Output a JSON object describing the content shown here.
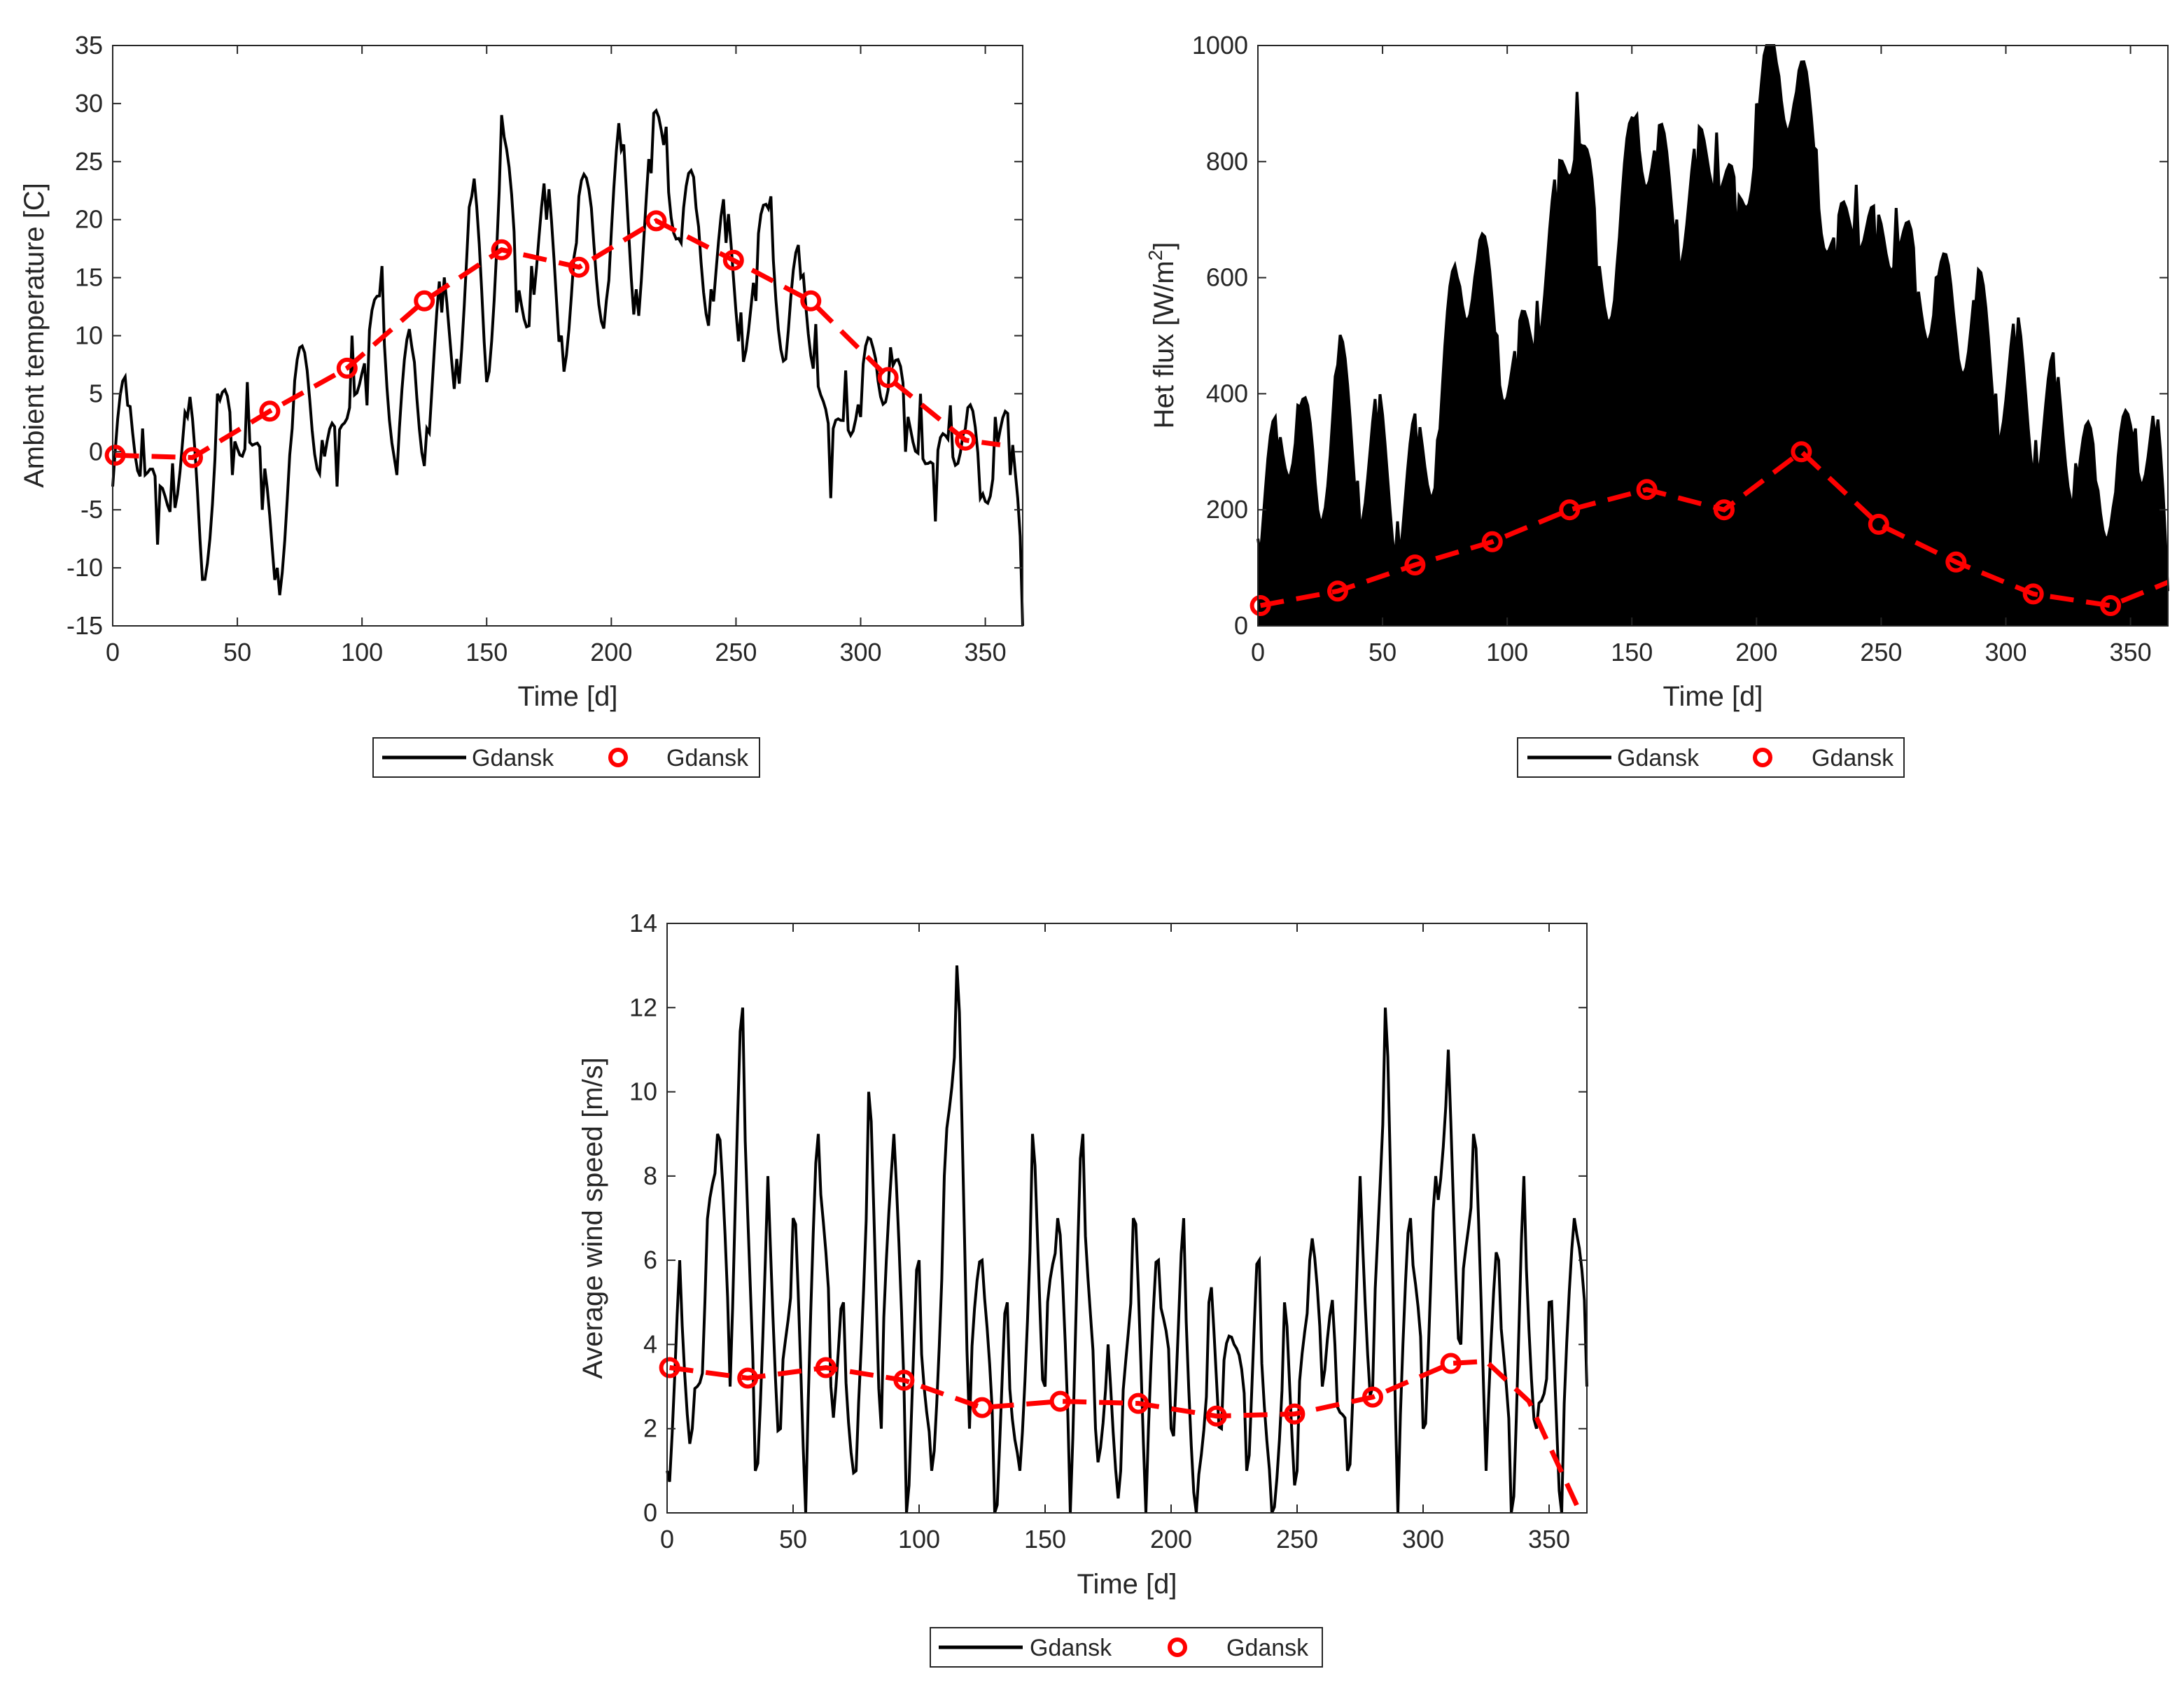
{
  "colors": {
    "raw": "#000000",
    "monthly": "#ff0000",
    "axis": "#262626",
    "background": "#ffffff"
  },
  "chart_data": [
    {
      "type": "line",
      "id": "temperature",
      "xlabel": "Time [d]",
      "ylabel": "Ambient temperature [C]",
      "xlim": [
        0,
        365
      ],
      "ylim": [
        -15,
        35
      ],
      "xticks": [
        0,
        50,
        100,
        150,
        200,
        250,
        300,
        350
      ],
      "yticks": [
        -15,
        -10,
        -5,
        0,
        5,
        10,
        15,
        20,
        25,
        30,
        35
      ],
      "series": [
        {
          "name": "Gdansk",
          "style": "solid-black",
          "x": [
            0,
            6,
            12,
            18,
            24,
            30,
            36,
            42,
            48,
            54,
            60,
            66,
            72,
            78,
            84,
            90,
            96,
            102,
            108,
            114,
            120,
            126,
            132,
            138,
            144,
            150,
            156,
            162,
            168,
            174,
            180,
            186,
            192,
            198,
            204,
            210,
            216,
            222,
            228,
            234,
            240,
            246,
            252,
            258,
            264,
            270,
            276,
            282,
            288,
            294,
            300,
            306,
            312,
            318,
            324,
            330,
            336,
            342,
            348,
            354,
            360,
            363,
            365
          ],
          "values": [
            -3,
            4,
            2,
            -8,
            -1,
            3,
            -11,
            5,
            -2,
            6,
            -5,
            -10,
            2,
            7,
            1,
            -3,
            10,
            4,
            16,
            -2,
            9,
            2,
            12,
            8,
            22,
            6,
            29,
            12,
            16,
            20,
            10,
            18,
            21,
            13,
            26,
            14,
            24,
            28,
            18,
            21,
            14,
            18,
            12,
            13,
            22,
            8,
            15,
            11,
            -4,
            7,
            3,
            8,
            9,
            0,
            5,
            -6,
            4,
            2,
            -4,
            3,
            -2,
            -4,
            -15
          ]
        },
        {
          "name": "Gdansk",
          "style": "red-circle-dashed",
          "x": [
            1,
            32,
            63,
            94,
            125,
            156,
            187,
            218,
            249,
            280,
            311,
            342,
            356
          ],
          "values": [
            -0.3,
            -0.5,
            3.5,
            7.2,
            13.0,
            17.4,
            15.9,
            19.9,
            16.5,
            13.0,
            6.4,
            1.0,
            0.6
          ]
        }
      ]
    },
    {
      "type": "line",
      "id": "heat-flux",
      "xlabel": "Time [d]",
      "ylabel": "Het flux [W/m",
      "ylabel_sup": "2",
      "ylabel_tail": "]",
      "xlim": [
        0,
        365
      ],
      "ylim": [
        0,
        1000
      ],
      "xticks": [
        0,
        50,
        100,
        150,
        200,
        250,
        300,
        350
      ],
      "yticks": [
        0,
        200,
        400,
        600,
        800,
        1000
      ],
      "series": [
        {
          "name": "Gdansk",
          "style": "solid-black",
          "x": [
            0,
            8,
            16,
            24,
            32,
            40,
            48,
            56,
            64,
            72,
            80,
            88,
            96,
            104,
            112,
            120,
            128,
            136,
            144,
            152,
            160,
            168,
            176,
            184,
            192,
            200,
            208,
            216,
            224,
            232,
            240,
            248,
            256,
            264,
            272,
            280,
            288,
            296,
            304,
            312,
            320,
            328,
            336,
            344,
            352,
            360,
            365
          ],
          "values": [
            150,
            300,
            380,
            200,
            450,
            250,
            330,
            180,
            290,
            320,
            600,
            630,
            500,
            420,
            560,
            700,
            920,
            600,
            620,
            880,
            800,
            700,
            760,
            850,
            660,
            900,
            970,
            920,
            820,
            600,
            760,
            620,
            720,
            550,
            600,
            500,
            560,
            400,
            460,
            320,
            390,
            280,
            250,
            230,
            340,
            320,
            60
          ]
        },
        {
          "name": "Gdansk",
          "style": "red-circle-dashed",
          "x": [
            1,
            32,
            63,
            94,
            125,
            156,
            187,
            218,
            249,
            280,
            311,
            342,
            365
          ],
          "values": [
            35,
            60,
            105,
            145,
            200,
            235,
            200,
            300,
            175,
            110,
            55,
            35,
            75
          ]
        }
      ]
    },
    {
      "type": "line",
      "id": "wind-speed",
      "xlabel": "Time [d]",
      "ylabel": "Average wind speed [m/s]",
      "xlim": [
        0,
        365
      ],
      "ylim": [
        0,
        14
      ],
      "xticks": [
        0,
        50,
        100,
        150,
        200,
        250,
        300,
        350
      ],
      "yticks": [
        0,
        2,
        4,
        6,
        8,
        10,
        12,
        14
      ],
      "series": [
        {
          "name": "Gdansk",
          "style": "solid-black",
          "x": [
            0,
            5,
            10,
            15,
            20,
            25,
            30,
            35,
            40,
            45,
            50,
            55,
            60,
            65,
            70,
            75,
            80,
            85,
            90,
            95,
            100,
            105,
            110,
            115,
            120,
            125,
            130,
            135,
            140,
            145,
            150,
            155,
            160,
            165,
            170,
            175,
            180,
            185,
            190,
            195,
            200,
            205,
            210,
            215,
            220,
            225,
            230,
            235,
            240,
            245,
            250,
            255,
            260,
            265,
            270,
            275,
            280,
            285,
            290,
            295,
            300,
            305,
            310,
            315,
            320,
            325,
            330,
            335,
            340,
            345,
            350,
            355,
            360,
            365
          ],
          "values": [
            1,
            6,
            2,
            5,
            9,
            3,
            12,
            1,
            8,
            2,
            7,
            0,
            9,
            3,
            5,
            1,
            10,
            2,
            9,
            0,
            6,
            1,
            8,
            13,
            2,
            6,
            0,
            5,
            1,
            9,
            3,
            7,
            0,
            9,
            2,
            4,
            1,
            7,
            0,
            6,
            2,
            7,
            0,
            5,
            2,
            4,
            1,
            6,
            0,
            5,
            1,
            6,
            3,
            4,
            1,
            8,
            3,
            12,
            0,
            7,
            2,
            8,
            11,
            4,
            9,
            1,
            6,
            0,
            8,
            2,
            5,
            0,
            7,
            3
          ]
        },
        {
          "name": "Gdansk",
          "style": "red-circle-dashed",
          "x": [
            1,
            32,
            63,
            94,
            125,
            156,
            187,
            218,
            249,
            280,
            311,
            325,
            342,
            362
          ],
          "values": [
            3.45,
            3.2,
            3.45,
            3.15,
            2.5,
            2.65,
            2.6,
            2.3,
            2.35,
            2.75,
            3.55,
            3.6,
            2.65,
            0.05
          ]
        }
      ]
    }
  ],
  "legends": [
    {
      "items": [
        "Gdansk",
        "Gdansk"
      ]
    },
    {
      "items": [
        "Gdansk",
        "Gdansk"
      ]
    },
    {
      "items": [
        "Gdansk",
        "Gdansk"
      ]
    }
  ]
}
